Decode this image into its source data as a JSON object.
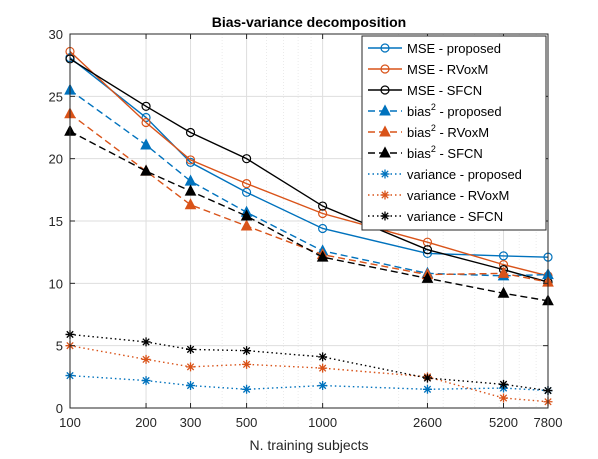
{
  "chart_data": {
    "type": "line",
    "title": "Bias-variance decomposition",
    "xlabel": "N. training subjects",
    "ylabel": "",
    "x_scale": "log",
    "x": [
      100,
      200,
      300,
      500,
      1000,
      2600,
      5200,
      7800
    ],
    "x_tick_labels": [
      "100",
      "200",
      "300",
      "500",
      "1000",
      "2600",
      "5200",
      "7800"
    ],
    "xlim": [
      100,
      7800
    ],
    "ylim": [
      0,
      30
    ],
    "y_ticks": [
      0,
      5,
      10,
      15,
      20,
      25,
      30
    ],
    "y_tick_labels": [
      "0",
      "5",
      "10",
      "15",
      "20",
      "25",
      "30"
    ],
    "grid": true,
    "legend_position": "top-right",
    "colors": {
      "proposed": "#0072BD",
      "RVoxM": "#D95319",
      "SFCN": "#000000"
    },
    "series": [
      {
        "name": "MSE - proposed",
        "name_sup": "",
        "name_rest": "",
        "group": "proposed",
        "style": "solid",
        "marker": "circle",
        "values": [
          28.1,
          23.3,
          19.7,
          17.3,
          14.4,
          12.4,
          12.2,
          12.1
        ]
      },
      {
        "name": "MSE - RVoxM",
        "name_sup": "",
        "name_rest": "",
        "group": "RVoxM",
        "style": "solid",
        "marker": "circle",
        "values": [
          28.6,
          22.9,
          19.9,
          18.0,
          15.6,
          13.3,
          11.5,
          10.6
        ]
      },
      {
        "name": "MSE - SFCN",
        "name_sup": "",
        "name_rest": "",
        "group": "SFCN",
        "style": "solid",
        "marker": "circle",
        "values": [
          28.0,
          24.2,
          22.1,
          20.0,
          16.2,
          12.7,
          11.1,
          10.1
        ]
      },
      {
        "name": "bias",
        "name_sup": "2",
        "name_rest": " - proposed",
        "group": "proposed",
        "style": "dashed",
        "marker": "triangle",
        "values": [
          25.5,
          21.1,
          18.2,
          15.7,
          12.6,
          10.8,
          10.6,
          10.7
        ]
      },
      {
        "name": "bias",
        "name_sup": "2",
        "name_rest": " - RVoxM",
        "group": "RVoxM",
        "style": "dashed",
        "marker": "triangle",
        "values": [
          23.6,
          19.0,
          16.3,
          14.6,
          12.3,
          10.7,
          10.8,
          10.1
        ]
      },
      {
        "name": "bias",
        "name_sup": "2",
        "name_rest": " - SFCN",
        "group": "SFCN",
        "style": "dashed",
        "marker": "triangle",
        "values": [
          22.2,
          19.0,
          17.4,
          15.4,
          12.1,
          10.4,
          9.2,
          8.6
        ]
      },
      {
        "name": "variance - proposed",
        "name_sup": "",
        "name_rest": "",
        "group": "proposed",
        "style": "dotted",
        "marker": "star",
        "values": [
          2.6,
          2.2,
          1.8,
          1.5,
          1.8,
          1.5,
          1.6,
          1.4
        ]
      },
      {
        "name": "variance - RVoxM",
        "name_sup": "",
        "name_rest": "",
        "group": "RVoxM",
        "style": "dotted",
        "marker": "star",
        "values": [
          5.0,
          3.9,
          3.3,
          3.5,
          3.2,
          2.5,
          0.8,
          0.5
        ]
      },
      {
        "name": "variance - SFCN",
        "name_sup": "",
        "name_rest": "",
        "group": "SFCN",
        "style": "dotted",
        "marker": "star",
        "values": [
          5.9,
          5.3,
          4.7,
          4.6,
          4.1,
          2.4,
          1.9,
          1.4
        ]
      }
    ]
  }
}
